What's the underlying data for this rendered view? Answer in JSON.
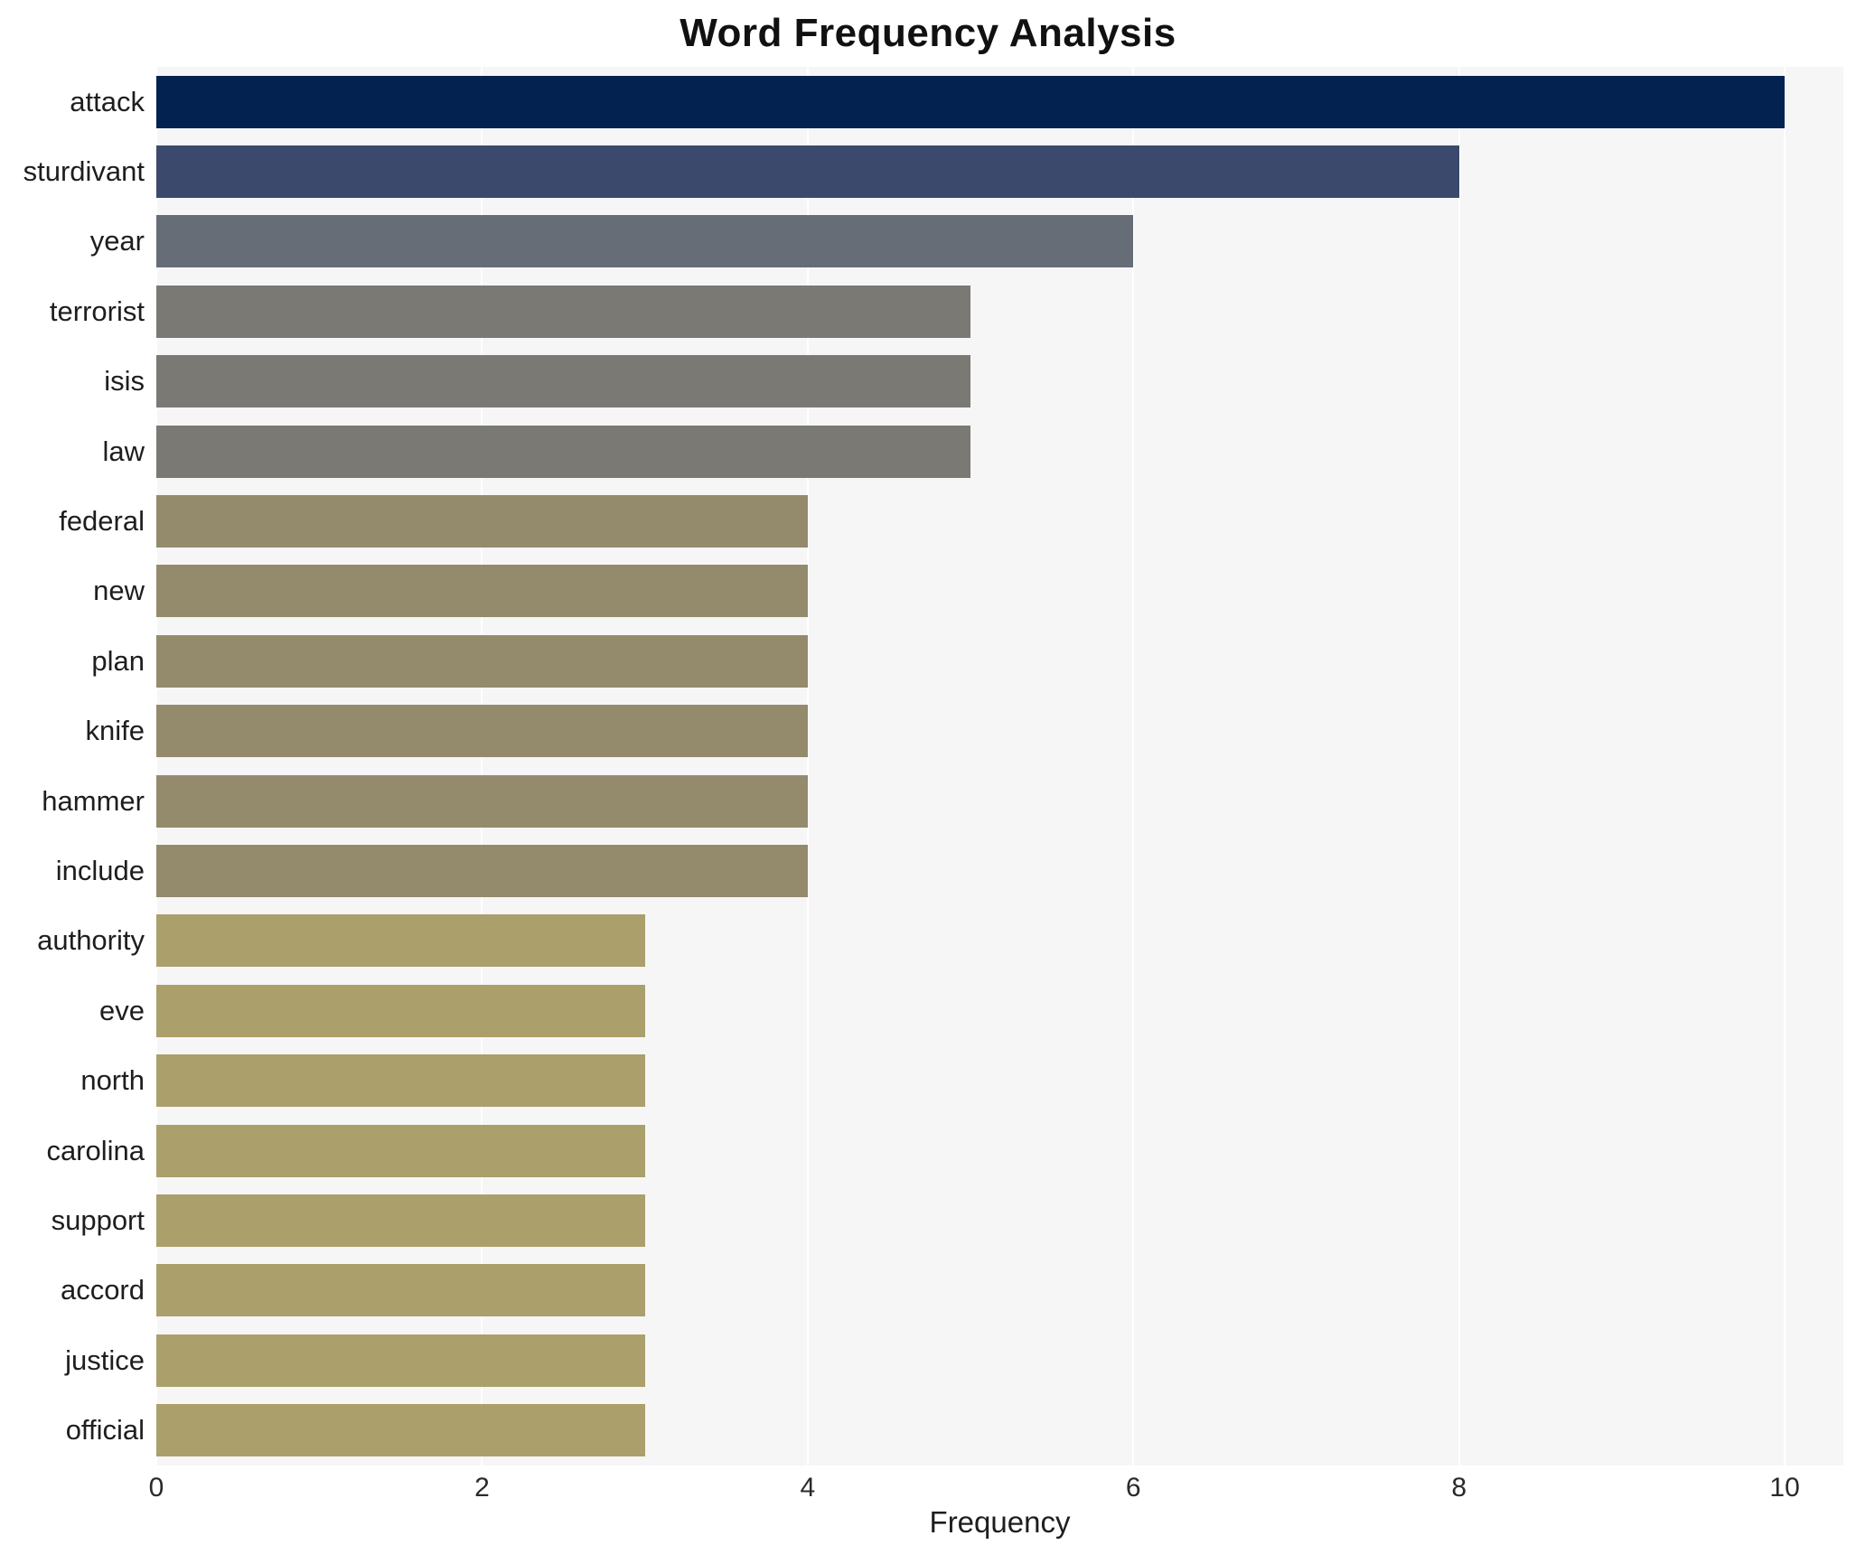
{
  "title": "Word Frequency Analysis",
  "chart_data": {
    "type": "bar",
    "orientation": "horizontal",
    "title": "Word Frequency Analysis",
    "xlabel": "Frequency",
    "ylabel": "",
    "categories": [
      "attack",
      "sturdivant",
      "year",
      "terrorist",
      "isis",
      "law",
      "federal",
      "new",
      "plan",
      "knife",
      "hammer",
      "include",
      "authority",
      "eve",
      "north",
      "carolina",
      "support",
      "accord",
      "justice",
      "official"
    ],
    "values": [
      10,
      8,
      6,
      5,
      5,
      5,
      4,
      4,
      4,
      4,
      4,
      4,
      3,
      3,
      3,
      3,
      3,
      3,
      3,
      3
    ],
    "bar_colors": [
      "#03224f",
      "#3b4a6c",
      "#676d77",
      "#7b7973",
      "#7b7973",
      "#7b7973",
      "#948b6d",
      "#948b6d",
      "#948b6d",
      "#948b6d",
      "#948b6d",
      "#948b6d",
      "#ab9f6b",
      "#ab9f6b",
      "#ab9f6b",
      "#ab9f6b",
      "#ab9f6b",
      "#ab9f6b",
      "#ab9f6b",
      "#ab9f6b"
    ],
    "x_ticks": [
      0,
      2,
      4,
      6,
      8,
      10
    ],
    "xlim": [
      0,
      10.36
    ],
    "grid": true,
    "legend": "none",
    "plot_background": "#f6f6f7",
    "gridline_color": "#ffffff"
  }
}
